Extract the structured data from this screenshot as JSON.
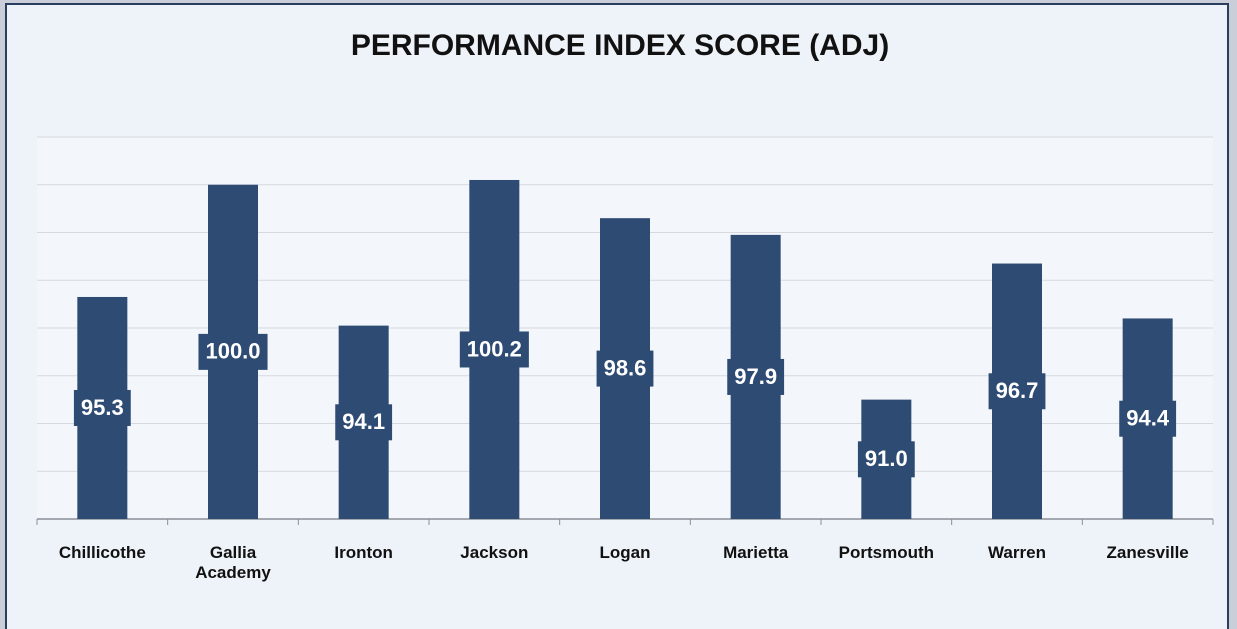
{
  "chart_data": {
    "type": "bar",
    "title": "PERFORMANCE INDEX SCORE (ADJ)",
    "categories": [
      "Chillicothe",
      "Gallia Academy",
      "Ironton",
      "Jackson",
      "Logan",
      "Marietta",
      "Portsmouth",
      "Warren",
      "Zanesville"
    ],
    "values": [
      95.3,
      100.0,
      94.1,
      100.2,
      98.6,
      97.9,
      91.0,
      96.7,
      94.4
    ],
    "value_labels": [
      "95.3",
      "100.0",
      "94.1",
      "100.2",
      "98.6",
      "97.9",
      "91.0",
      "96.7",
      "94.4"
    ],
    "color": "#2e4b73",
    "ylim": [
      86,
      102
    ],
    "yticks": [
      86,
      88,
      90,
      92,
      94,
      96,
      98,
      100,
      102
    ],
    "grid": true
  }
}
